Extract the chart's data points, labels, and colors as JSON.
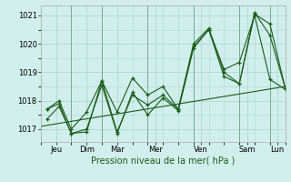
{
  "bg_color": "#d0eeeb",
  "grid_color": "#b0d8d4",
  "line_color": "#1a5c1a",
  "xlabel": "Pression niveau de la mer( hPa )",
  "ylim": [
    1016.55,
    1021.35
  ],
  "yticks": [
    1017,
    1018,
    1019,
    1020,
    1021
  ],
  "xlim": [
    0.0,
    8.0
  ],
  "xtick_positions": [
    0.5,
    1.5,
    2.5,
    3.75,
    5.25,
    6.75,
    7.75
  ],
  "xtick_labels": [
    "Jeu",
    "Dim",
    "Mar",
    "Mer",
    "Ven",
    "Sam",
    "Lun"
  ],
  "vline_positions": [
    1.0,
    2.0,
    3.5,
    5.0,
    6.5,
    7.5
  ],
  "line1_x": [
    0.2,
    0.6,
    1.0,
    1.5,
    2.0,
    2.5,
    3.0,
    3.5,
    4.0,
    4.5,
    5.0,
    5.5,
    6.0,
    6.5,
    7.0,
    7.5,
    8.0
  ],
  "line1_y": [
    1017.7,
    1018.0,
    1017.0,
    1017.6,
    1018.7,
    1017.6,
    1018.8,
    1018.2,
    1018.5,
    1017.7,
    1020.0,
    1020.55,
    1019.0,
    1018.6,
    1021.1,
    1020.3,
    1018.45
  ],
  "line2_x": [
    0.2,
    0.6,
    1.0,
    1.5,
    2.0,
    2.5,
    3.0,
    3.5,
    4.0,
    4.5,
    5.0,
    5.5,
    6.0,
    6.5,
    7.0,
    7.5,
    8.0
  ],
  "line2_y": [
    1017.7,
    1017.9,
    1016.85,
    1016.9,
    1018.7,
    1016.9,
    1018.2,
    1017.85,
    1018.2,
    1017.7,
    1019.9,
    1020.5,
    1018.85,
    1018.6,
    1021.05,
    1020.7,
    1018.45
  ],
  "line3_x": [
    0.2,
    0.6,
    1.0,
    1.5,
    2.0,
    2.5,
    3.0,
    3.5,
    4.0,
    4.5,
    5.0,
    5.5,
    6.0,
    6.5,
    7.0,
    7.5,
    8.0
  ],
  "line3_y": [
    1017.35,
    1017.8,
    1016.85,
    1017.0,
    1018.55,
    1016.85,
    1018.3,
    1017.5,
    1018.1,
    1017.65,
    1019.85,
    1020.5,
    1019.1,
    1019.35,
    1021.0,
    1018.75,
    1018.4
  ],
  "trend_x": [
    0.0,
    8.0
  ],
  "trend_y": [
    1017.1,
    1018.5
  ],
  "figsize": [
    3.2,
    2.0
  ],
  "dpi": 100
}
